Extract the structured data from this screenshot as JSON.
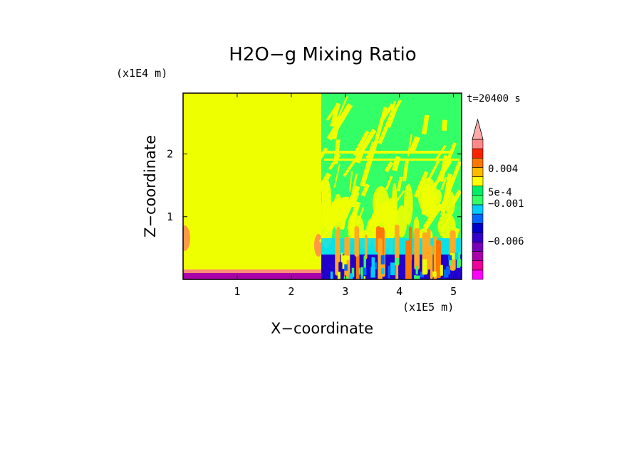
{
  "chart_data": {
    "type": "heatmap",
    "title": "H2O−g Mixing Ratio",
    "xlabel": "X−coordinate",
    "ylabel": "Z−coordinate",
    "x_unit": "(x1E5 m)",
    "y_unit": "(x1E4 m)",
    "time_label": "t=20400 s",
    "xlim": [
      0,
      5.15
    ],
    "ylim": [
      0,
      2.97
    ],
    "x_ticks": [
      "1",
      "2",
      "3",
      "4",
      "5"
    ],
    "y_ticks": [
      "1",
      "2"
    ],
    "colorbar": {
      "labels": [
        "0.004",
        "5e-4",
        "−0.001",
        "−0.006"
      ],
      "levels": [
        -0.009,
        -0.0075,
        -0.006,
        -0.0045,
        -0.003,
        -0.002,
        -0.001,
        0,
        0.0005,
        0.001,
        0.002,
        0.003,
        0.004,
        0.005,
        0.006
      ],
      "colors": [
        "#ff00ff",
        "#ee0099",
        "#aa00aa",
        "#7700bb",
        "#3300cc",
        "#0000cc",
        "#0066ff",
        "#00ccff",
        "#33ff66",
        "#00ee66",
        "#ffff00",
        "#ffbb00",
        "#ff7700",
        "#ff2200",
        "#ff8888"
      ],
      "extend": "max"
    },
    "regions": [
      {
        "x": [
          0,
          2.55
        ],
        "z": [
          0.1,
          2.97
        ],
        "color": "#eeff00",
        "note": "uniform"
      },
      {
        "x": [
          0,
          2.55
        ],
        "z": [
          0,
          0.1
        ],
        "color": "#aa00aa"
      },
      {
        "x": [
          2.55,
          5.15
        ],
        "z": [
          0.4,
          2.97
        ],
        "color": "#33ff66"
      },
      {
        "x": [
          2.55,
          5.15
        ],
        "z": [
          0,
          0.4
        ],
        "color": "#0000cc"
      }
    ]
  }
}
